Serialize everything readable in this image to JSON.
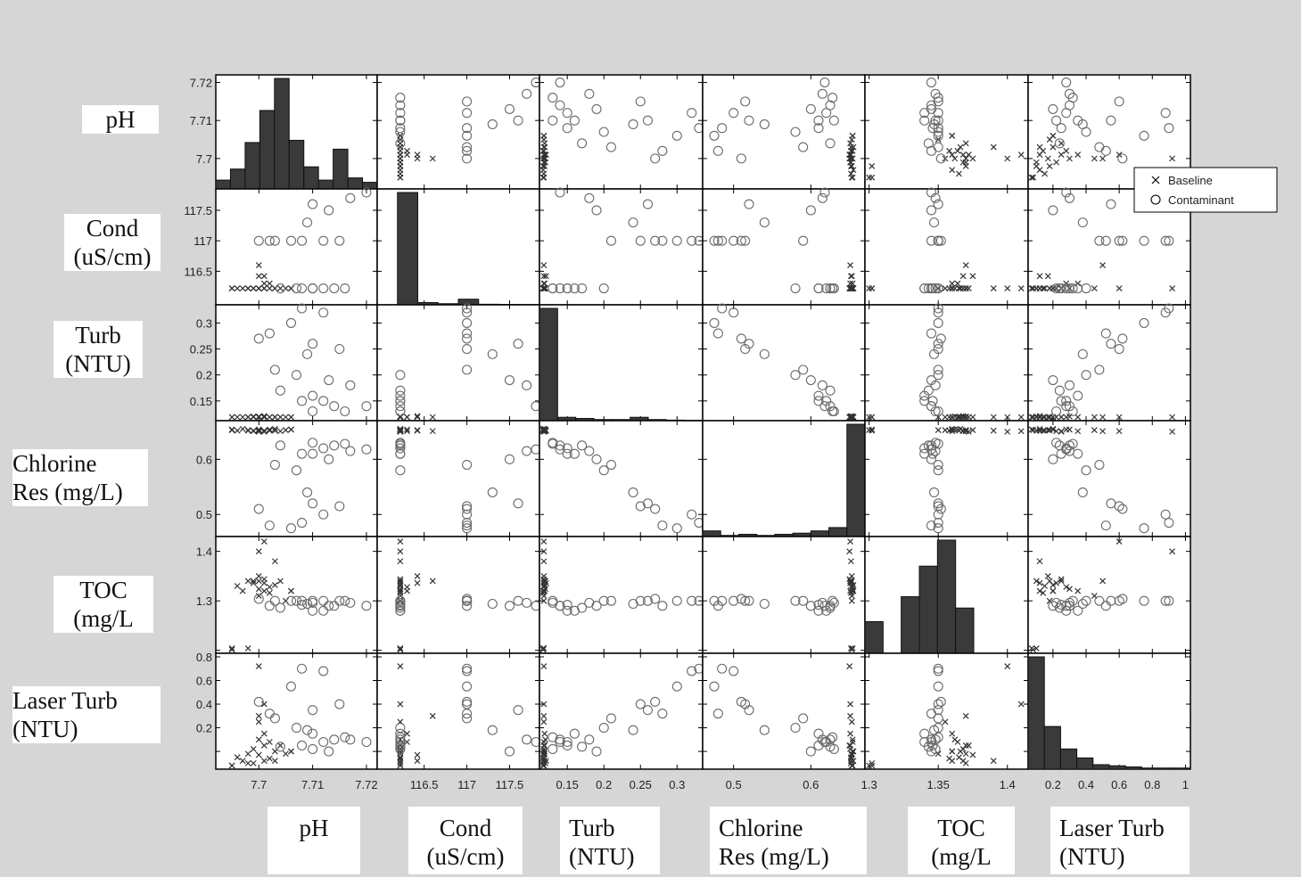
{
  "chart_data": {
    "type": "scatter",
    "variables": [
      {
        "name": "pH",
        "range": [
          7.692,
          7.722
        ],
        "ticks": [
          "7.7",
          "7.71",
          "7.72"
        ],
        "tick_values": [
          7.7,
          7.71,
          7.72
        ]
      },
      {
        "name": "Cond (uS/cm)",
        "range": [
          115.95,
          117.85
        ],
        "ticks": [
          "116.5",
          "117",
          "117.5"
        ],
        "tick_values": [
          116.5,
          117,
          117.5
        ]
      },
      {
        "name": "Turb (NTU)",
        "range": [
          0.112,
          0.335
        ],
        "ticks": [
          "0.15",
          "0.2",
          "0.25",
          "0.3"
        ],
        "tick_values": [
          0.15,
          0.2,
          0.25,
          0.3
        ]
      },
      {
        "name": "Chlorine Res (mg/L)",
        "range": [
          0.46,
          0.67
        ],
        "ticks": [
          "0.5",
          "0.6"
        ],
        "tick_values": [
          0.5,
          0.6
        ]
      },
      {
        "name": "TOC (mg/L",
        "range": [
          1.297,
          1.415
        ],
        "ticks": [
          "1.3",
          "1.35",
          "1.4"
        ],
        "tick_values": [
          1.3,
          1.35,
          1.4
        ]
      },
      {
        "name": "Laser Turb (NTU)",
        "range": [
          0.05,
          1.03
        ],
        "ticks": [
          "0.2",
          "0.4",
          "0.6",
          "0.8",
          "1"
        ],
        "tick_values": [
          0.2,
          0.4,
          0.6,
          0.8,
          1.0
        ]
      }
    ],
    "row_tick_labels": [
      [
        "7.72",
        "7.71",
        "7.7"
      ],
      [
        "117.5",
        "117",
        "116.5"
      ],
      [
        "0.3",
        "0.25",
        "0.2",
        "0.15"
      ],
      [
        "0.6",
        "0.5"
      ],
      [
        "1.4",
        "1.3"
      ],
      [
        "0.8",
        "0.6",
        "0.4",
        "0.2"
      ]
    ],
    "col_tick_labels": [
      [
        "7.7",
        "7.71",
        "7.72"
      ],
      [
        "116.5",
        "117",
        "117.5"
      ],
      [
        "0.15",
        "0.2",
        "0.25",
        "0.3"
      ],
      [
        "0.5",
        "0.6"
      ],
      [
        "1.3",
        "1.35",
        "1.4"
      ],
      [
        "0.2",
        "0.4",
        "0.6",
        "0.8",
        "1"
      ]
    ],
    "histograms": [
      [
        0.08,
        0.18,
        0.42,
        0.71,
        1.0,
        0.44,
        0.2,
        0.08,
        0.36,
        0.1,
        0.06
      ],
      [
        0.0,
        1.0,
        0.02,
        0.01,
        0.05,
        0.005,
        0.003,
        0.002
      ],
      [
        1.0,
        0.03,
        0.02,
        0.01,
        0.01,
        0.03,
        0.01,
        0.005,
        0.003
      ],
      [
        0.05,
        0.01,
        0.02,
        0.01,
        0.02,
        0.03,
        0.05,
        0.08,
        1.0
      ],
      [
        0.28,
        0.0,
        0.5,
        0.77,
        1.0,
        0.4,
        0.0,
        0.0,
        0.0
      ],
      [
        1.0,
        0.38,
        0.18,
        0.1,
        0.04,
        0.03,
        0.02,
        0.01,
        0.01,
        0.01
      ]
    ],
    "series": [
      {
        "name": "Baseline",
        "marker": "x",
        "points": [
          [
            7.696,
            116.22,
            0.118,
            0.652,
            1.365,
            0.15
          ],
          [
            7.697,
            116.22,
            0.117,
            0.655,
            1.36,
            0.12
          ],
          [
            7.698,
            116.22,
            0.119,
            0.653,
            1.37,
            0.18
          ],
          [
            7.699,
            116.22,
            0.118,
            0.651,
            1.368,
            0.22
          ],
          [
            7.7,
            116.22,
            0.12,
            0.654,
            1.362,
            0.3
          ],
          [
            7.701,
            116.22,
            0.118,
            0.65,
            1.372,
            0.25
          ],
          [
            7.702,
            116.22,
            0.117,
            0.652,
            1.358,
            0.14
          ],
          [
            7.703,
            116.22,
            0.119,
            0.655,
            1.366,
            0.2
          ],
          [
            7.7,
            116.22,
            0.118,
            0.653,
            1.355,
            0.45
          ],
          [
            7.699,
            116.22,
            0.12,
            0.652,
            1.37,
            0.1
          ],
          [
            7.701,
            116.3,
            0.119,
            0.651,
            1.36,
            0.35
          ],
          [
            7.702,
            116.3,
            0.118,
            0.654,
            1.364,
            0.28
          ],
          [
            7.7,
            116.42,
            0.118,
            0.653,
            1.375,
            0.17
          ],
          [
            7.701,
            116.42,
            0.121,
            0.652,
            1.368,
            0.12
          ],
          [
            7.7,
            116.6,
            0.118,
            0.651,
            1.37,
            0.5
          ],
          [
            7.695,
            116.22,
            0.117,
            0.653,
            1.3,
            0.08
          ],
          [
            7.695,
            116.22,
            0.118,
            0.654,
            1.302,
            0.06
          ],
          [
            7.698,
            116.22,
            0.117,
            0.652,
            1.302,
            0.1
          ],
          [
            7.7,
            116.22,
            0.118,
            0.65,
            1.4,
            0.92
          ],
          [
            7.701,
            116.22,
            0.118,
            0.651,
            1.41,
            0.6
          ],
          [
            7.703,
            116.22,
            0.118,
            0.652,
            1.39,
            0.12
          ],
          [
            7.704,
            116.22,
            0.119,
            0.651,
            1.37,
            0.25
          ],
          [
            7.705,
            116.22,
            0.118,
            0.653,
            1.35,
            0.18
          ],
          [
            7.706,
            116.22,
            0.118,
            0.654,
            1.36,
            0.2
          ],
          [
            7.706,
            116.22,
            0.118,
            0.654,
            1.36,
            0.2
          ]
        ]
      },
      {
        "name": "Contaminant",
        "marker": "o",
        "points": [
          [
            7.72,
            117.85,
            0.14,
            0.618,
            1.345,
            0.28
          ],
          [
            7.717,
            117.7,
            0.18,
            0.615,
            1.348,
            0.3
          ],
          [
            7.71,
            117.6,
            0.26,
            0.52,
            1.35,
            0.55
          ],
          [
            7.715,
            117.0,
            0.25,
            0.515,
            1.35,
            0.6
          ],
          [
            7.712,
            117.0,
            0.32,
            0.5,
            1.35,
            0.88
          ],
          [
            7.708,
            117.0,
            0.33,
            0.485,
            1.35,
            0.9
          ],
          [
            7.706,
            117.0,
            0.3,
            0.475,
            1.35,
            0.75
          ],
          [
            7.702,
            117.0,
            0.28,
            0.48,
            1.345,
            0.52
          ],
          [
            7.707,
            116.22,
            0.2,
            0.58,
            1.35,
            0.4
          ],
          [
            7.71,
            116.22,
            0.16,
            0.61,
            1.34,
            0.35
          ],
          [
            7.712,
            116.22,
            0.15,
            0.62,
            1.34,
            0.28
          ],
          [
            7.714,
            116.22,
            0.14,
            0.625,
            1.345,
            0.3
          ],
          [
            7.71,
            116.22,
            0.13,
            0.63,
            1.348,
            0.22
          ],
          [
            7.708,
            116.22,
            0.15,
            0.61,
            1.346,
            0.25
          ],
          [
            7.703,
            117.0,
            0.21,
            0.59,
            1.35,
            0.48
          ],
          [
            7.709,
            117.3,
            0.24,
            0.54,
            1.347,
            0.38
          ],
          [
            7.713,
            117.5,
            0.19,
            0.6,
            1.345,
            0.2
          ],
          [
            7.716,
            116.22,
            0.13,
            0.628,
            1.35,
            0.32
          ],
          [
            7.7,
            117.0,
            0.27,
            0.51,
            1.352,
            0.62
          ],
          [
            7.704,
            116.22,
            0.17,
            0.625,
            1.343,
            0.24
          ]
        ]
      }
    ],
    "legend": {
      "entries": [
        "Baseline",
        "Contaminant"
      ],
      "position": "right"
    },
    "grid": false
  },
  "labels": {
    "rows": [
      [
        "pH"
      ],
      [
        "Cond",
        "(uS/cm)"
      ],
      [
        "Turb",
        "(NTU)"
      ],
      [
        "Chlorine",
        "Res (mg/L)"
      ],
      [
        "TOC",
        "(mg/L"
      ],
      [
        "Laser Turb",
        "(NTU)"
      ]
    ],
    "cols": [
      [
        "pH"
      ],
      [
        "Cond",
        "(uS/cm)"
      ],
      [
        "Turb",
        "(NTU)"
      ],
      [
        "Chlorine",
        "Res (mg/L)"
      ],
      [
        "TOC",
        "(mg/L"
      ],
      [
        "Laser Turb",
        "(NTU)"
      ]
    ]
  },
  "colors": {
    "background": "#d6d6d6",
    "panel": "#ffffff",
    "histogram": "#3a3a3a",
    "baseline_marker": "#333333",
    "contaminant_marker": "#6a6a6a"
  }
}
